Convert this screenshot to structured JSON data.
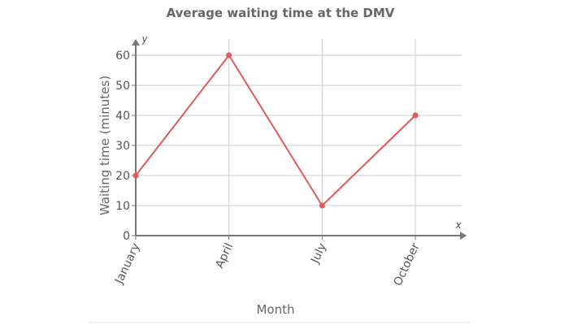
{
  "chart_data": {
    "type": "line",
    "title": "Average waiting time at the DMV",
    "xlabel": "Month",
    "ylabel": "Waiting time (minutes)",
    "x_axis_letter": "x",
    "y_axis_letter": "y",
    "categories": [
      "January",
      "April",
      "July",
      "October"
    ],
    "series": [
      {
        "values": [
          20,
          60,
          10,
          40
        ]
      }
    ],
    "ylim": [
      0,
      60
    ],
    "yticks": [
      0,
      10,
      20,
      30,
      40,
      50,
      60
    ],
    "grid": true,
    "colors": {
      "line": "#e05a5a",
      "grid": "#cccccc",
      "axis": "#777777"
    }
  }
}
